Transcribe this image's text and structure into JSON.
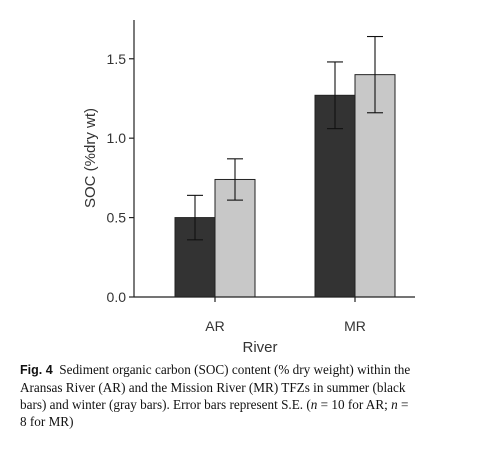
{
  "chart_data": {
    "type": "bar",
    "categories": [
      "AR",
      "MR"
    ],
    "series": [
      {
        "values": [
          0.5,
          1.27
        ],
        "errors": [
          0.14,
          0.21
        ],
        "color": "#333333"
      },
      {
        "values": [
          0.74,
          1.4
        ],
        "errors": [
          0.13,
          0.24
        ],
        "color": "#c8c8c8"
      }
    ],
    "xlabel": "River",
    "ylabel": "SOC (%dry wt)",
    "yticks": [
      "0.0",
      "0.5",
      "1.0",
      "1.5"
    ],
    "ylim": [
      0,
      1.7
    ],
    "grid": false,
    "legend": "none"
  },
  "caption": {
    "label": "Fig. 4",
    "line1": "Sediment organic carbon (SOC) content (% dry weight) within the",
    "line2": "Aransas River (AR) and the Mission River (MR) TFZs in summer (black",
    "line3_a": "bars) and winter (gray bars). Error bars represent S.E. (",
    "n": "n",
    "eq1": " = 10 for AR; ",
    "eq2": " =",
    "line4": "8 for MR)"
  }
}
